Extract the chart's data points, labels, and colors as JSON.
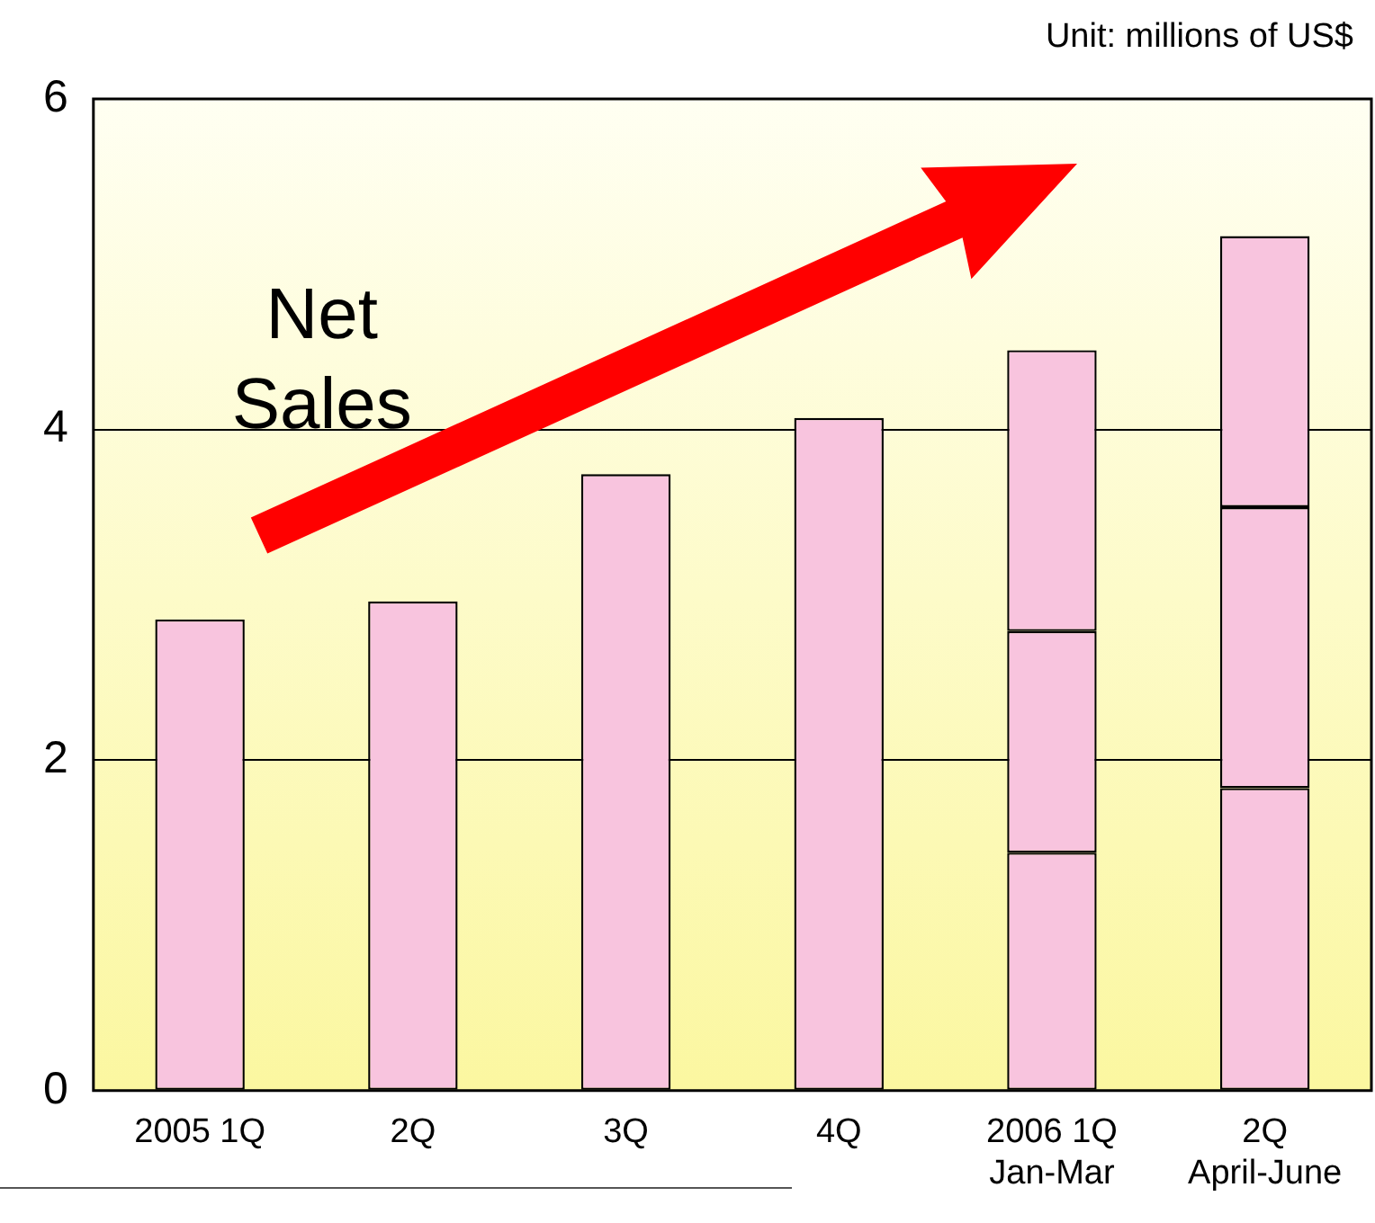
{
  "chart_data": {
    "type": "bar",
    "stacked": true,
    "categories": [
      "2005 1Q",
      "2Q",
      "3Q",
      "4Q",
      "2006 1Q\nJan-Mar",
      "2Q\nApril-June"
    ],
    "series": [
      {
        "color": "#f8c4de",
        "values": [
          2.85,
          2.96,
          3.73,
          4.07,
          1.44,
          1.83
        ]
      },
      {
        "color": "#f8c4de",
        "values": [
          null,
          null,
          null,
          null,
          1.34,
          1.7
        ]
      },
      {
        "color": "#f8c4de",
        "values": [
          null,
          null,
          null,
          null,
          1.7,
          1.64
        ]
      }
    ],
    "ylim": [
      0,
      6
    ],
    "yticks": [
      0,
      2,
      4,
      6
    ],
    "grid": "y",
    "legend": false,
    "annotations": [
      "Unit: millions of US$",
      "Net Sales"
    ]
  }
}
